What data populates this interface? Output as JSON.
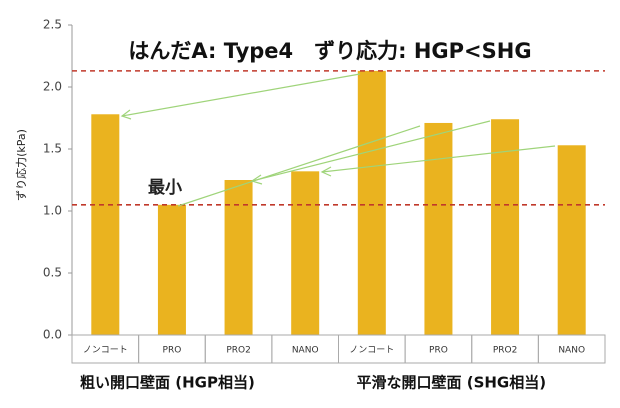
{
  "chart_data": {
    "type": "bar",
    "title": "はんだA: Type4　ずり応力: HGP<SHG",
    "y_label": "ずり応力(kPa)",
    "annotation": "最小",
    "categories": [
      "ノンコート",
      "PRO",
      "PRO2",
      "NANO",
      "ノンコート",
      "PRO",
      "PRO2",
      "NANO"
    ],
    "values": [
      1.78,
      1.05,
      1.25,
      1.32,
      2.13,
      1.71,
      1.74,
      1.53
    ],
    "color": "#eab31f",
    "groups": [
      "粗い開口壁面 (HGP相当)",
      "平滑な開口壁面 (SHG相当)"
    ],
    "reference_lines": [
      2.13,
      1.05
    ],
    "reference_color": "#c0392b",
    "ylim": [
      0,
      2.5
    ],
    "yticks": [
      {
        "value": 0,
        "label": "0.0"
      },
      0.5,
      {
        "value": 1,
        "label": "1.0"
      },
      1.5,
      {
        "value": 2,
        "label": "2.0"
      },
      2.5
    ]
  }
}
